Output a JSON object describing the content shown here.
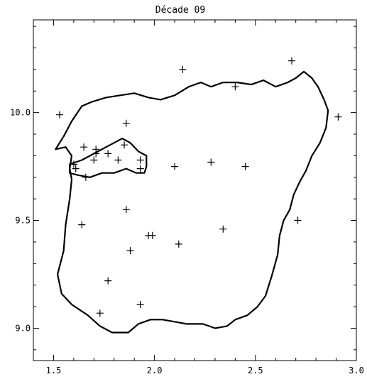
{
  "chart_data": {
    "type": "scatter",
    "title": "Décade 09",
    "xlabel": "",
    "ylabel": "",
    "xlim": [
      1.4,
      3.0
    ],
    "ylim": [
      8.85,
      10.43
    ],
    "x_ticks": [
      1.5,
      2.0,
      2.5,
      3.0
    ],
    "x_tick_labels": [
      "1.5",
      "2.0",
      "2.5",
      "3.0"
    ],
    "y_ticks": [
      9.0,
      9.5,
      10.0
    ],
    "y_tick_labels": [
      "9.0",
      "9.5",
      "10.0"
    ],
    "grid": false,
    "legend": "none",
    "marker": "plus",
    "color": "#000000",
    "points": [
      {
        "x": 1.53,
        "y": 9.99
      },
      {
        "x": 2.14,
        "y": 10.2
      },
      {
        "x": 2.68,
        "y": 10.24
      },
      {
        "x": 2.4,
        "y": 10.12
      },
      {
        "x": 2.91,
        "y": 9.98
      },
      {
        "x": 1.86,
        "y": 9.95
      },
      {
        "x": 1.65,
        "y": 9.84
      },
      {
        "x": 1.71,
        "y": 9.83
      },
      {
        "x": 1.71,
        "y": 9.81
      },
      {
        "x": 1.77,
        "y": 9.81
      },
      {
        "x": 1.85,
        "y": 9.85
      },
      {
        "x": 1.82,
        "y": 9.78
      },
      {
        "x": 1.7,
        "y": 9.78
      },
      {
        "x": 1.93,
        "y": 9.78
      },
      {
        "x": 1.93,
        "y": 9.74
      },
      {
        "x": 1.6,
        "y": 9.76
      },
      {
        "x": 1.61,
        "y": 9.74
      },
      {
        "x": 1.66,
        "y": 9.7
      },
      {
        "x": 2.1,
        "y": 9.75
      },
      {
        "x": 2.28,
        "y": 9.77
      },
      {
        "x": 2.45,
        "y": 9.75
      },
      {
        "x": 1.86,
        "y": 9.55
      },
      {
        "x": 1.64,
        "y": 9.48
      },
      {
        "x": 2.71,
        "y": 9.5
      },
      {
        "x": 2.34,
        "y": 9.46
      },
      {
        "x": 1.97,
        "y": 9.43
      },
      {
        "x": 1.99,
        "y": 9.43
      },
      {
        "x": 2.12,
        "y": 9.39
      },
      {
        "x": 1.88,
        "y": 9.36
      },
      {
        "x": 1.77,
        "y": 9.22
      },
      {
        "x": 1.93,
        "y": 9.11
      },
      {
        "x": 1.73,
        "y": 9.07
      }
    ],
    "outlines": [
      {
        "name": "outer-boundary",
        "points": [
          [
            1.51,
            9.83
          ],
          [
            1.56,
            9.84
          ],
          [
            1.59,
            9.8
          ],
          [
            1.58,
            9.74
          ],
          [
            1.59,
            9.69
          ],
          [
            1.58,
            9.6
          ],
          [
            1.56,
            9.48
          ],
          [
            1.55,
            9.36
          ],
          [
            1.52,
            9.25
          ],
          [
            1.54,
            9.16
          ],
          [
            1.59,
            9.11
          ],
          [
            1.67,
            9.06
          ],
          [
            1.73,
            9.01
          ],
          [
            1.79,
            8.98
          ],
          [
            1.87,
            8.98
          ],
          [
            1.92,
            9.02
          ],
          [
            1.98,
            9.04
          ],
          [
            2.04,
            9.04
          ],
          [
            2.1,
            9.03
          ],
          [
            2.16,
            9.02
          ],
          [
            2.24,
            9.02
          ],
          [
            2.3,
            9.0
          ],
          [
            2.36,
            9.01
          ],
          [
            2.4,
            9.04
          ],
          [
            2.46,
            9.06
          ],
          [
            2.51,
            9.1
          ],
          [
            2.55,
            9.15
          ],
          [
            2.58,
            9.24
          ],
          [
            2.61,
            9.34
          ],
          [
            2.62,
            9.43
          ],
          [
            2.64,
            9.5
          ],
          [
            2.67,
            9.55
          ],
          [
            2.69,
            9.62
          ],
          [
            2.72,
            9.68
          ],
          [
            2.75,
            9.73
          ],
          [
            2.78,
            9.8
          ],
          [
            2.82,
            9.86
          ],
          [
            2.85,
            9.93
          ],
          [
            2.86,
            10.01
          ],
          [
            2.84,
            10.06
          ],
          [
            2.81,
            10.12
          ],
          [
            2.78,
            10.16
          ],
          [
            2.74,
            10.19
          ],
          [
            2.7,
            10.16
          ],
          [
            2.66,
            10.14
          ],
          [
            2.6,
            10.12
          ],
          [
            2.54,
            10.15
          ],
          [
            2.48,
            10.13
          ],
          [
            2.41,
            10.14
          ],
          [
            2.34,
            10.14
          ],
          [
            2.28,
            10.12
          ],
          [
            2.23,
            10.14
          ],
          [
            2.17,
            10.12
          ],
          [
            2.1,
            10.08
          ],
          [
            2.03,
            10.06
          ],
          [
            1.97,
            10.07
          ],
          [
            1.9,
            10.09
          ],
          [
            1.83,
            10.08
          ],
          [
            1.76,
            10.07
          ],
          [
            1.69,
            10.05
          ],
          [
            1.64,
            10.03
          ],
          [
            1.59,
            9.96
          ],
          [
            1.55,
            9.89
          ],
          [
            1.51,
            9.83
          ]
        ]
      },
      {
        "name": "inner-boundary",
        "points": [
          [
            1.58,
            9.76
          ],
          [
            1.64,
            9.78
          ],
          [
            1.7,
            9.81
          ],
          [
            1.76,
            9.84
          ],
          [
            1.8,
            9.86
          ],
          [
            1.84,
            9.88
          ],
          [
            1.88,
            9.86
          ],
          [
            1.92,
            9.82
          ],
          [
            1.96,
            9.8
          ],
          [
            1.96,
            9.75
          ],
          [
            1.95,
            9.72
          ],
          [
            1.91,
            9.72
          ],
          [
            1.86,
            9.74
          ],
          [
            1.8,
            9.72
          ],
          [
            1.74,
            9.72
          ],
          [
            1.68,
            9.7
          ],
          [
            1.62,
            9.71
          ],
          [
            1.58,
            9.72
          ],
          [
            1.58,
            9.76
          ]
        ]
      }
    ]
  }
}
